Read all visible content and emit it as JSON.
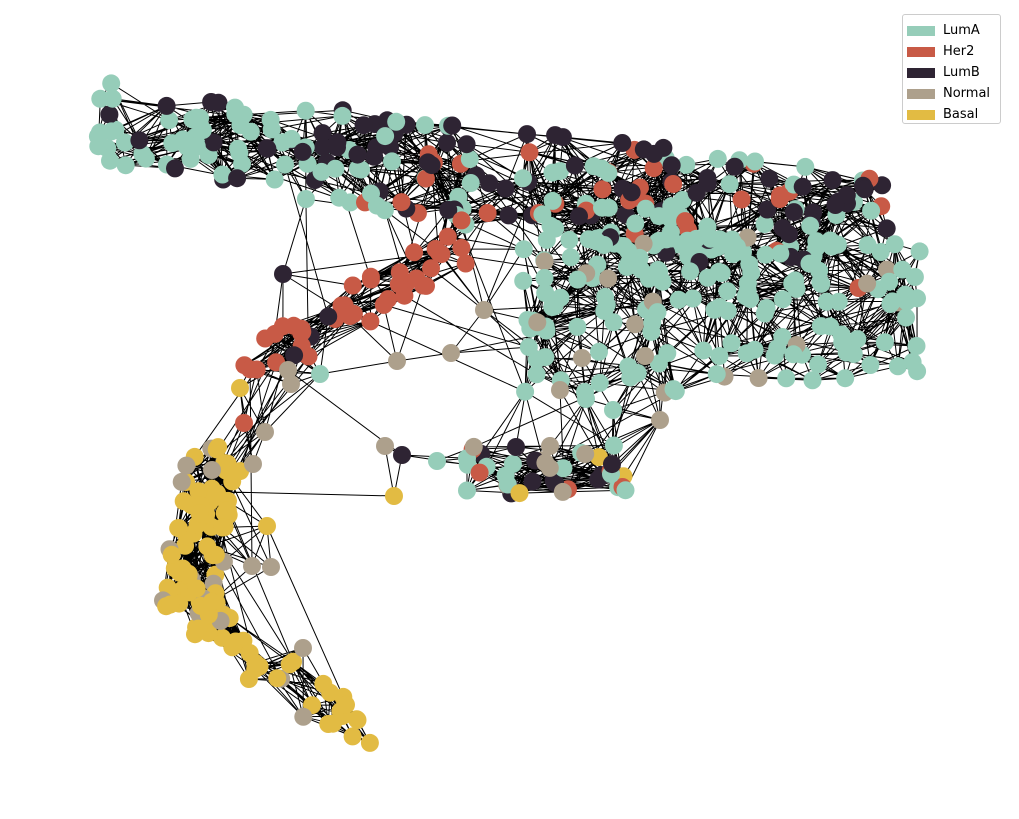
{
  "legend": {
    "items": [
      {
        "label": "LumA",
        "color": "#96cdb9"
      },
      {
        "label": "Her2",
        "color": "#c85a46"
      },
      {
        "label": "LumB",
        "color": "#2e2433"
      },
      {
        "label": "Normal",
        "color": "#ada08c"
      },
      {
        "label": "Basal",
        "color": "#e2bb43"
      }
    ]
  },
  "edge_color": "#000000"
}
